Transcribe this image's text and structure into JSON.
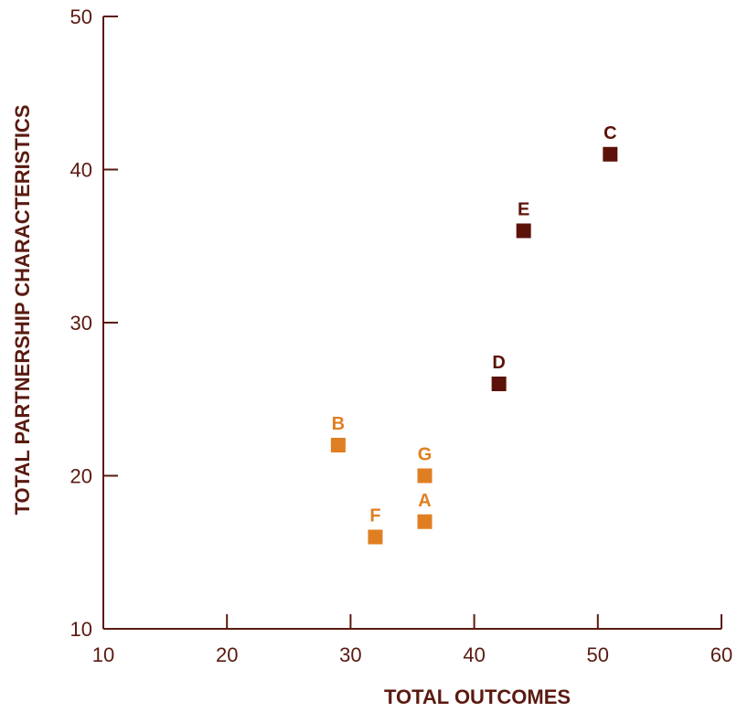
{
  "chart_data": {
    "type": "scatter",
    "title": "",
    "xlabel": "TOTAL OUTCOMES",
    "ylabel": "TOTAL PARTNERSHIP CHARACTERISTICS",
    "xlim": [
      10,
      60
    ],
    "ylim": [
      10,
      50
    ],
    "xticks": [
      "10",
      "20",
      "30",
      "40",
      "50",
      "60"
    ],
    "yticks": [
      "10",
      "20",
      "30",
      "40",
      "50"
    ],
    "grid": false,
    "colors": {
      "axis": "#5a1a10",
      "light": "#e07f22",
      "dark": "#5c1209"
    },
    "points": [
      {
        "label": "A",
        "x": 36,
        "y": 17,
        "group": "light"
      },
      {
        "label": "B",
        "x": 29,
        "y": 22,
        "group": "light"
      },
      {
        "label": "C",
        "x": 51,
        "y": 41,
        "group": "dark"
      },
      {
        "label": "D",
        "x": 42,
        "y": 26,
        "group": "dark"
      },
      {
        "label": "E",
        "x": 44,
        "y": 36,
        "group": "dark"
      },
      {
        "label": "F",
        "x": 32,
        "y": 16,
        "group": "light"
      },
      {
        "label": "G",
        "x": 36,
        "y": 20,
        "group": "light"
      }
    ]
  }
}
